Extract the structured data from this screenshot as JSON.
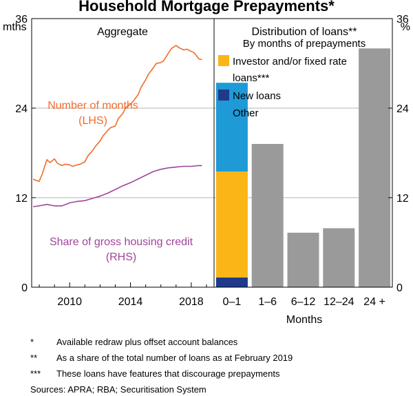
{
  "chart_data": [
    {
      "type": "line",
      "panel_title": "Aggregate",
      "left_unit": "mths",
      "right_unit": "%",
      "ylim": [
        0,
        36
      ],
      "yticks": [
        0,
        12,
        24,
        36
      ],
      "xlim": [
        2007.5,
        2019.5
      ],
      "xticks": [
        2010,
        2014,
        2018
      ],
      "series": [
        {
          "name": "Number of months",
          "axis_note": "(LHS)",
          "color": "#F26A2A",
          "x": [
            2007.6,
            2007.8,
            2008.0,
            2008.2,
            2008.5,
            2008.7,
            2009.0,
            2009.2,
            2009.5,
            2009.7,
            2010.0,
            2010.2,
            2010.5,
            2010.7,
            2011.0,
            2011.2,
            2011.5,
            2011.7,
            2012.0,
            2012.2,
            2012.5,
            2012.7,
            2013.0,
            2013.2,
            2013.5,
            2013.7,
            2014.0,
            2014.2,
            2014.5,
            2014.7,
            2015.0,
            2015.2,
            2015.5,
            2015.7,
            2016.0,
            2016.2,
            2016.5,
            2016.7,
            2017.0,
            2017.2,
            2017.5,
            2017.7,
            2018.0,
            2018.2,
            2018.5,
            2018.7
          ],
          "values": [
            14.5,
            14.3,
            14.2,
            15.2,
            17.1,
            16.7,
            17.2,
            16.6,
            16.3,
            16.5,
            16.4,
            16.2,
            16.4,
            16.5,
            16.8,
            17.6,
            18.3,
            18.9,
            19.6,
            20.3,
            21.0,
            21.4,
            21.6,
            22.6,
            23.3,
            24.1,
            24.5,
            25.0,
            25.8,
            26.8,
            27.8,
            28.6,
            29.4,
            30.0,
            30.1,
            30.4,
            31.4,
            32.0,
            32.4,
            32.1,
            31.8,
            31.9,
            31.6,
            31.4,
            30.6,
            30.5
          ]
        },
        {
          "name": "Share of gross housing credit",
          "axis_note": "(RHS)",
          "color": "#A0449A",
          "x": [
            2007.6,
            2008.0,
            2008.5,
            2009.0,
            2009.5,
            2010.0,
            2010.5,
            2011.0,
            2011.5,
            2012.0,
            2012.5,
            2013.0,
            2013.5,
            2014.0,
            2014.5,
            2015.0,
            2015.5,
            2016.0,
            2016.5,
            2017.0,
            2017.5,
            2018.0,
            2018.5,
            2018.7
          ],
          "values": [
            10.8,
            10.9,
            11.1,
            10.9,
            10.9,
            11.3,
            11.5,
            11.6,
            11.9,
            12.2,
            12.6,
            13.1,
            13.6,
            14.0,
            14.5,
            15.0,
            15.5,
            15.8,
            16.0,
            16.1,
            16.2,
            16.2,
            16.3,
            16.3
          ]
        }
      ]
    },
    {
      "type": "bar",
      "panel_title": "Distribution of loans**",
      "panel_subtitle": "By months of prepayments",
      "ylim": [
        0,
        36
      ],
      "yticks": [
        0,
        12,
        24,
        36
      ],
      "xlabel": "Months",
      "categories": [
        "0–1",
        "1–6",
        "6–12",
        "12–24",
        "24 +"
      ],
      "series": [
        {
          "name": "New loans",
          "color": "#1F3A8A",
          "values": [
            1.3,
            0,
            0,
            0,
            0
          ]
        },
        {
          "name": "Investor and/or fixed rate loans***",
          "legend_lines": [
            "Investor and/or fixed rate",
            "loans***"
          ],
          "color": "#FBB516",
          "values": [
            14.2,
            0,
            0,
            0,
            0
          ]
        },
        {
          "name": "Other",
          "color": "#1E9AD6",
          "values": [
            11.9,
            0,
            0,
            0,
            0
          ]
        },
        {
          "name": "",
          "color": "#9A9A9A",
          "values": [
            0,
            19.2,
            7.3,
            7.9,
            32.0
          ]
        }
      ]
    }
  ],
  "title": "Household Mortgage Prepayments*",
  "footnotes": [
    {
      "mark": "*",
      "text": "Available redraw plus offset account balances"
    },
    {
      "mark": "**",
      "text": "As a share of the total number of loans as at February 2019"
    },
    {
      "mark": "***",
      "text": "These loans have features that discourage prepayments"
    }
  ],
  "sources": "Sources: APRA; RBA; Securitisation System"
}
